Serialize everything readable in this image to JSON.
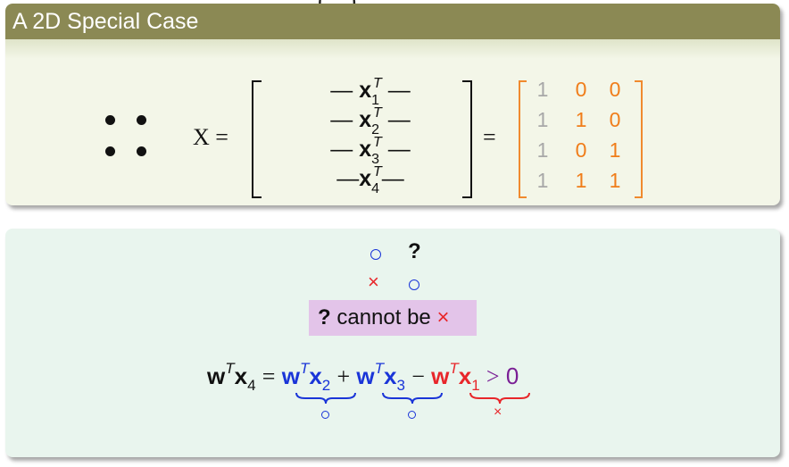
{
  "top_fragment": "…(…)",
  "block1": {
    "title": "A 2D Special Case",
    "x_label": "X =",
    "rows": [
      {
        "dash_left": "—",
        "vec": "x",
        "sup": "T",
        "sub": "1",
        "dash_right": "—"
      },
      {
        "dash_left": "—",
        "vec": "x",
        "sup": "T",
        "sub": "2",
        "dash_right": "—"
      },
      {
        "dash_left": "—",
        "vec": "x",
        "sup": "T",
        "sub": "3",
        "dash_right": "—"
      },
      {
        "dash_left": "—",
        "vec": "x",
        "sup": "T",
        "sub": "4",
        "dash_right": "—"
      }
    ],
    "equals": "=",
    "matrix": [
      [
        "1",
        "0",
        "0"
      ],
      [
        "1",
        "1",
        "0"
      ],
      [
        "1",
        "0",
        "1"
      ],
      [
        "1",
        "1",
        "1"
      ]
    ]
  },
  "block2": {
    "grid_mark_q": "?",
    "highlight": {
      "q": "?",
      "text": "cannot be",
      "cross": "×"
    },
    "equation": {
      "lhs_w": "w",
      "lhs_sup": "T",
      "lhs_x": "x",
      "lhs_sub": "4",
      "eq": "=",
      "t1_w": "w",
      "t1_sup": "T",
      "t1_x": "x",
      "t1_sub": "2",
      "plus": "+",
      "t2_w": "w",
      "t2_sup": "T",
      "t2_x": "x",
      "t2_sub": "3",
      "minus": "−",
      "t3_w": "w",
      "t3_sup": "T",
      "t3_x": "x",
      "t3_sub": "1",
      "gt": ">",
      "zero": "0",
      "under3": "×"
    }
  },
  "colors": {
    "title_bar": "#8b8954",
    "block1_bg": "#f3f6e8",
    "block2_bg": "#e9f5ee",
    "blue": "#1a35d8",
    "red": "#e8262a",
    "orange": "#f07d1a",
    "gray": "#a8a8a8",
    "purple": "#7a1f95",
    "highlight": "#e3c4e9"
  }
}
